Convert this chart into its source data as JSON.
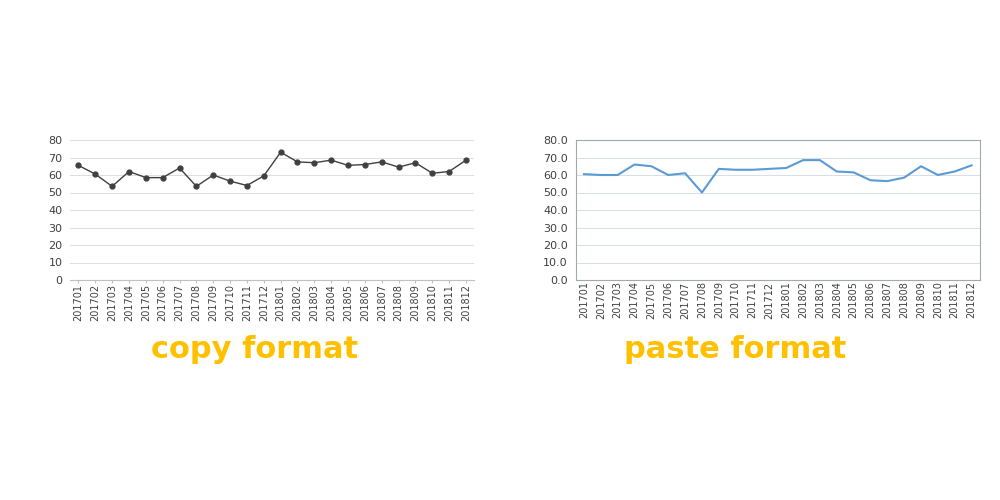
{
  "categories": [
    "201701",
    "201702",
    "201703",
    "201704",
    "201705",
    "201706",
    "201707",
    "201708",
    "201709",
    "201710",
    "201711",
    "201712",
    "201801",
    "201802",
    "201803",
    "201804",
    "201805",
    "201806",
    "201807",
    "201808",
    "201809",
    "201810",
    "201811",
    "201812"
  ],
  "values_left": [
    65.5,
    60.5,
    53.5,
    62.0,
    58.5,
    58.5,
    64.0,
    53.5,
    60.0,
    56.5,
    54.0,
    59.5,
    73.0,
    67.5,
    67.0,
    68.5,
    65.5,
    66.0,
    67.5,
    64.5,
    67.0,
    61.0,
    62.0,
    68.5
  ],
  "values_right": [
    60.5,
    60.0,
    60.0,
    66.0,
    65.0,
    60.0,
    61.0,
    50.0,
    63.5,
    63.0,
    63.0,
    63.5,
    64.0,
    68.5,
    68.5,
    62.0,
    61.5,
    57.0,
    56.5,
    58.5,
    65.0,
    60.0,
    62.0,
    65.5
  ],
  "left_label": "copy format",
  "right_label": "paste format",
  "label_color": "#FFC000",
  "label_fontsize": 22,
  "left_line_color": "#404040",
  "right_line_color": "#5B9BD5",
  "left_marker": "o",
  "left_ylim": [
    0,
    80
  ],
  "right_ylim": [
    0.0,
    80.0
  ],
  "left_yticks": [
    0,
    10,
    20,
    30,
    40,
    50,
    60,
    70,
    80
  ],
  "right_yticks": [
    0.0,
    10.0,
    20.0,
    30.0,
    40.0,
    50.0,
    60.0,
    70.0,
    80.0
  ],
  "tick_fontsize": 8,
  "xlabel_fontsize": 7,
  "background_color": "#ffffff"
}
